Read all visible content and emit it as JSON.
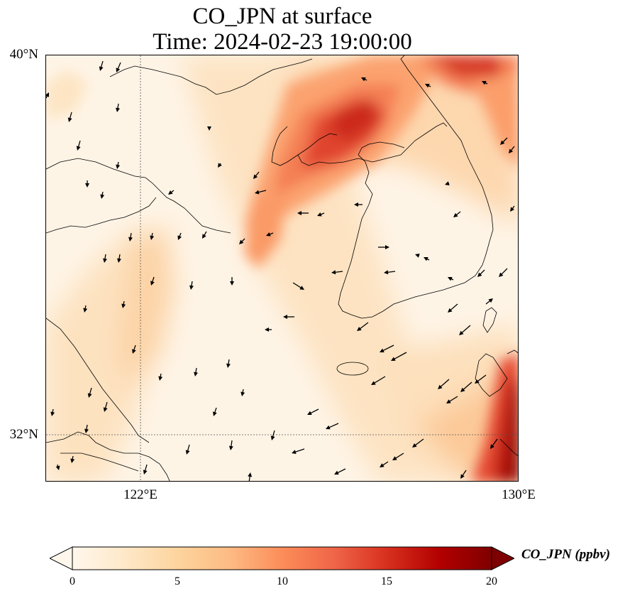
{
  "title": {
    "line1": "CO_JPN at surface",
    "line2": "Time: 2024-02-23 19:00:00"
  },
  "map": {
    "lat_ticks": [
      "40°N",
      "32°N"
    ],
    "lon_ticks": [
      "122°E",
      "130°E"
    ],
    "extent": {
      "lon_min": 120,
      "lon_max": 130,
      "lat_min": 31,
      "lat_max": 40
    },
    "gridlines": "dotted"
  },
  "colorbar": {
    "label": "CO_JPN (ppbv)",
    "ticks": [
      "0",
      "5",
      "10",
      "15",
      "20"
    ],
    "range": [
      0,
      20
    ],
    "extend": "both",
    "colormap": "OrRd",
    "colors": [
      "#fff7ec",
      "#fee8c8",
      "#fdd49e",
      "#fdbb84",
      "#fc8d59",
      "#ef6548",
      "#d7301f",
      "#b30000",
      "#7f0000"
    ]
  }
}
